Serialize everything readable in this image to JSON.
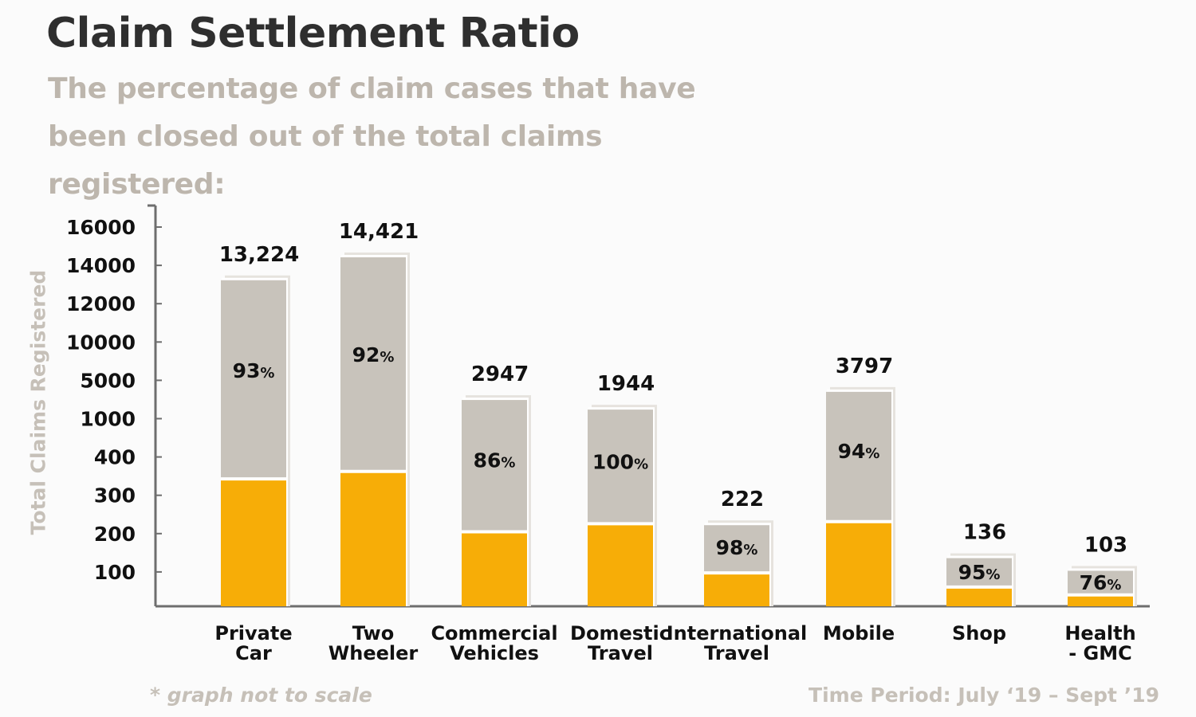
{
  "header": {
    "title": "Claim Settlement Ratio",
    "subtitle": "The percentage of claim cases that have been closed out of the total claims registered:"
  },
  "footer": {
    "note": "* graph not to scale",
    "period": "Time Period: July ‘19 – Sept ’19"
  },
  "colors": {
    "total_bar": "#c8c3bb",
    "settled_bar": "#f7ad07",
    "axis": "#6e6e6e",
    "text_dark": "#111111",
    "text_light": "#c6c0b8"
  },
  "chart_data": {
    "type": "bar",
    "title": "Claim Settlement Ratio",
    "ylabel": "Total Claims Registered",
    "scale_note": "not to scale",
    "yticks": [
      "16000",
      "14000",
      "12000",
      "10000",
      "5000",
      "1000",
      "400",
      "300",
      "200",
      "100"
    ],
    "categories": [
      "Private Car",
      "Two Wheeler",
      "Commercial Vehicles",
      "Domestic Travel",
      "International Travel",
      "Mobile",
      "Shop",
      "Health - GMC"
    ],
    "category_lines": [
      [
        "Private",
        "Car"
      ],
      [
        "Two",
        "Wheeler"
      ],
      [
        "Commercial",
        "Vehicles"
      ],
      [
        "Domestic",
        "Travel"
      ],
      [
        "International",
        "Travel"
      ],
      [
        "Mobile"
      ],
      [
        "Shop"
      ],
      [
        "Health",
        "- GMC"
      ]
    ],
    "total_labels": [
      "13,224",
      "14,421",
      "2947",
      "1944",
      "222",
      "3797",
      "136",
      "103"
    ],
    "totals": [
      13224,
      14421,
      2947,
      1944,
      222,
      3797,
      136,
      103
    ],
    "ratio_labels": [
      "93",
      "92",
      "86",
      "100",
      "98",
      "94",
      "95",
      "76"
    ],
    "ratio_unit": "%",
    "series": [
      {
        "name": "Total Claims Registered",
        "values": [
          13224,
          14421,
          2947,
          1944,
          222,
          3797,
          136,
          103
        ]
      },
      {
        "name": "Claim Settlement Ratio (%)",
        "values": [
          93,
          92,
          86,
          100,
          98,
          94,
          95,
          76
        ]
      }
    ]
  }
}
